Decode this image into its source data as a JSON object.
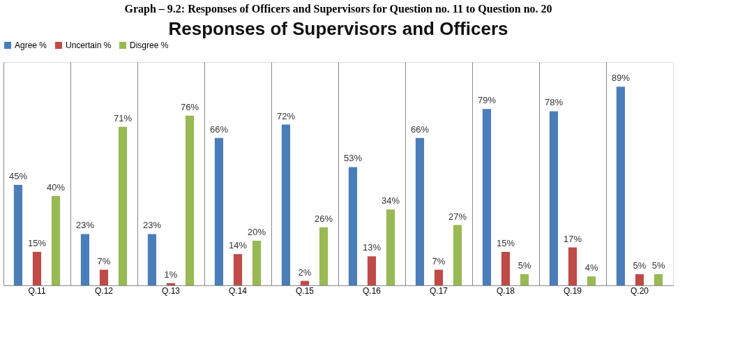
{
  "chart_data": {
    "type": "bar",
    "title": "Responses of Supervisors and Officers",
    "annotations": [
      "Graph – 9.2: Responses of Officers and Supervisors for Question no. 11 to Question no. 20"
    ],
    "categories": [
      "Q.11",
      "Q.12",
      "Q.13",
      "Q.14",
      "Q.15",
      "Q.16",
      "Q.17",
      "Q.18",
      "Q.19",
      "Q.20"
    ],
    "series": [
      {
        "name": "Agree %",
        "color": "#4a7ebb",
        "values": [
          45,
          23,
          23,
          66,
          72,
          53,
          66,
          79,
          78,
          89
        ],
        "value_labels": [
          "45%",
          "23%",
          "23%",
          "66%",
          "72%",
          "53%",
          "66%",
          "79%",
          "78%",
          "89%"
        ]
      },
      {
        "name": "Uncertain %",
        "color": "#be4b48",
        "values": [
          15,
          7,
          1,
          14,
          2,
          13,
          7,
          15,
          17,
          5
        ],
        "value_labels": [
          "15%",
          "7%",
          "1%",
          "14%",
          "2%",
          "13%",
          "7%",
          "15%",
          "17%",
          "5%"
        ]
      },
      {
        "name": "Disgree %",
        "color": "#98b954",
        "values": [
          40,
          71,
          76,
          20,
          26,
          34,
          27,
          5,
          4,
          5
        ],
        "value_labels": [
          "40%",
          "71%",
          "76%",
          "20%",
          "26%",
          "34%",
          "27%",
          "5%",
          "4%",
          "5%"
        ]
      }
    ],
    "ylim": [
      0,
      100
    ],
    "grid": "x",
    "legend": "top",
    "tick_labels": "x"
  }
}
